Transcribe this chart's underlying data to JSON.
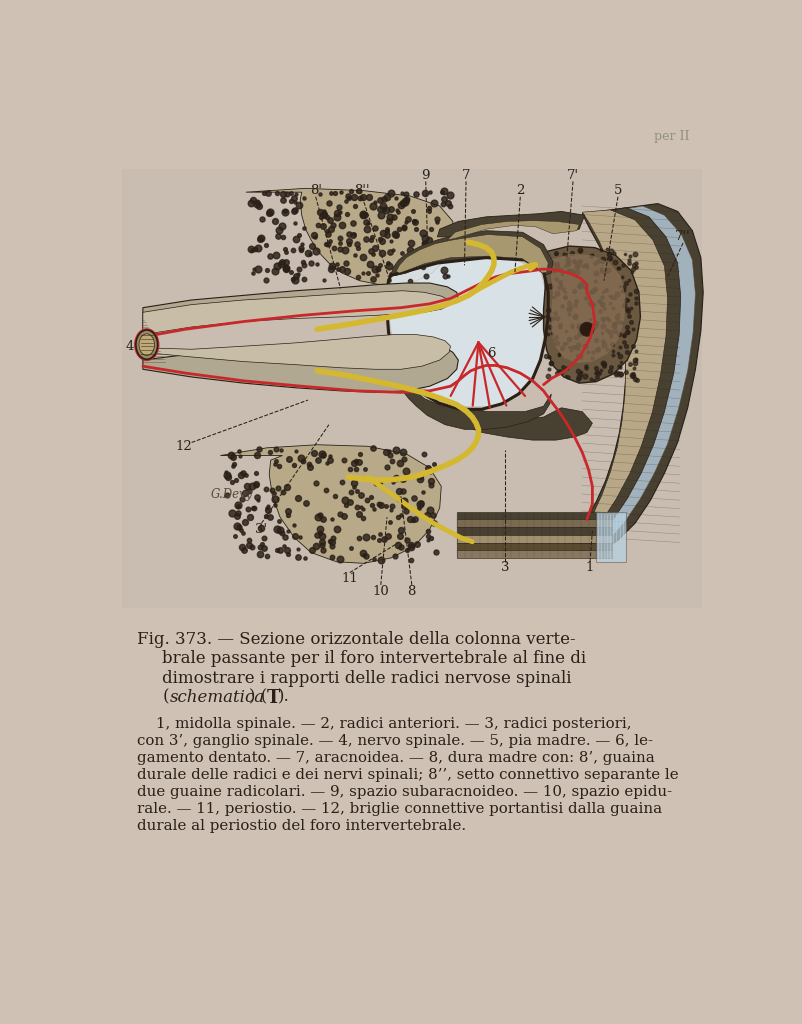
{
  "bg_color": "#cfc2b5",
  "illus_bg": "#c8bdb0",
  "paper_color": "#c8bbb0",
  "RED": "#c8282a",
  "YELLOW": "#d4b830",
  "DARK": "#2a2018",
  "MED": "#5a4a3a",
  "BONE": "#b0a080",
  "BONE_DARK": "#484030",
  "BLUE_LIGHT": "#b8d0e0",
  "GRAY_LIGHT": "#d8d0c4",
  "CANAL_FILL": "#dce8f0",
  "page_header": "per II",
  "artist": "G.Devy",
  "cap_line1": "Fig. 373. — Sezione orizzontale della colonna verte-",
  "cap_line2": "brale passante per il foro intervertebrale al fine di",
  "cap_line3": "dimostrare i rapporti delle radici nervose spinali",
  "cap_line4a": "(",
  "cap_line4b": "schematica",
  "cap_line4c": ") (",
  "cap_line4d": "T",
  "cap_line4e": ").",
  "leg1": "    1, midolla spinale. — 2, radici anteriori. — 3, radici posteriori,",
  "leg2": "con 3’, ganglio spinale. — 4, nervo spinale. — 5, pia madre. — 6, le-",
  "leg3": "gamento dentato. — 7, aracnoidea. — 8, dura madre con: 8’, guaina",
  "leg4": "durale delle radici e dei nervi spinali; 8’’, setto connettivo separante le",
  "leg5": "due guaine radicolari. — 9, spazio subaracnoideo. — 10, spazio epidu-",
  "leg6": "rale. — 11, periostio. — 12, briglie connettive portantisi dalla guaina",
  "leg7": "durale al periostio del foro intervertebrale."
}
